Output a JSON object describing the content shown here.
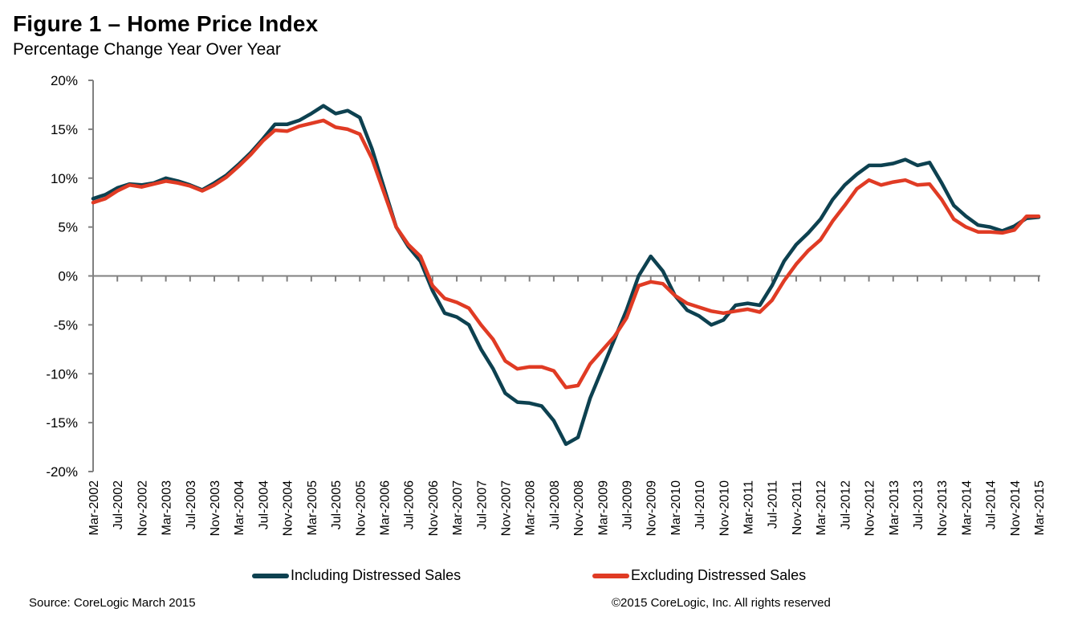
{
  "header": {
    "title": "Figure 1 – Home Price Index",
    "subtitle": "Percentage Change Year Over Year"
  },
  "footer": {
    "source": "Source: CoreLogic  March 2015",
    "copyright": "©2015 CoreLogic, Inc. All rights reserved"
  },
  "chart_data": {
    "type": "line",
    "title": "Figure 1 – Home Price Index",
    "subtitle": "Percentage Change Year Over Year",
    "xlabel": "",
    "ylabel": "",
    "ylim": [
      -20,
      20
    ],
    "y_ticks": [
      20,
      15,
      10,
      5,
      0,
      -5,
      -10,
      -15,
      -20
    ],
    "y_tick_labels": [
      "20%",
      "15%",
      "10%",
      "5%",
      "0%",
      "-5%",
      "-10%",
      "-15%",
      "-20%"
    ],
    "x_start": "Mar-2002",
    "x_step_months": 2,
    "x_tick_labels": [
      "Mar-2002",
      "Jul-2002",
      "Nov-2002",
      "Mar-2003",
      "Jul-2003",
      "Nov-2003",
      "Mar-2004",
      "Jul-2004",
      "Nov-2004",
      "Mar-2005",
      "Jul-2005",
      "Nov-2005",
      "Mar-2006",
      "Jul-2006",
      "Nov-2006",
      "Mar-2007",
      "Jul-2007",
      "Nov-2007",
      "Mar-2008",
      "Jul-2008",
      "Nov-2008",
      "Mar-2009",
      "Jul-2009",
      "Nov-2009",
      "Mar-2010",
      "Jul-2010",
      "Nov-2010",
      "Mar-2011",
      "Jul-2011",
      "Nov-2011",
      "Mar-2012",
      "Jul-2012",
      "Nov-2012",
      "Mar-2013",
      "Jul-2013",
      "Nov-2013",
      "Mar-2014",
      "Jul-2014",
      "Nov-2014",
      "Mar-2015"
    ],
    "legend_position": "bottom",
    "grid": false,
    "series": [
      {
        "name": "Including Distressed Sales",
        "color": "#0d4150",
        "values": [
          7.9,
          8.3,
          9.0,
          9.4,
          9.3,
          9.5,
          10.0,
          9.7,
          9.3,
          8.8,
          9.5,
          10.3,
          11.4,
          12.6,
          14.0,
          15.5,
          15.5,
          15.9,
          16.6,
          17.4,
          16.6,
          16.9,
          16.2,
          13.0,
          9.0,
          5.0,
          3.0,
          1.5,
          -1.5,
          -3.8,
          -4.2,
          -5.0,
          -7.5,
          -9.5,
          -12.0,
          -12.9,
          -13.0,
          -13.3,
          -14.8,
          -17.2,
          -16.5,
          -12.5,
          -9.5,
          -6.5,
          -3.5,
          0.0,
          2.0,
          0.5,
          -2.0,
          -3.5,
          -4.1,
          -5.0,
          -4.5,
          -3.0,
          -2.8,
          -3.0,
          -1.0,
          1.5,
          3.2,
          4.4,
          5.8,
          7.8,
          9.3,
          10.4,
          11.3,
          11.3,
          11.5,
          11.9,
          11.3,
          11.6,
          9.5,
          7.2,
          6.1,
          5.2,
          5.0,
          4.6,
          5.1,
          5.9,
          6.0
        ],
        "values_note": "sampled every 2 months from Mar-2002 to Mar-2015"
      },
      {
        "name": "Excluding Distressed Sales",
        "color": "#e03b24",
        "values": [
          7.5,
          7.9,
          8.7,
          9.3,
          9.1,
          9.4,
          9.7,
          9.5,
          9.2,
          8.7,
          9.3,
          10.1,
          11.2,
          12.4,
          13.8,
          14.9,
          14.8,
          15.3,
          15.6,
          15.9,
          15.2,
          15.0,
          14.5,
          12.0,
          8.5,
          5.0,
          3.2,
          2.0,
          -1.0,
          -2.3,
          -2.7,
          -3.3,
          -5.0,
          -6.5,
          -8.7,
          -9.5,
          -9.3,
          -9.3,
          -9.7,
          -11.4,
          -11.2,
          -9.0,
          -7.6,
          -6.2,
          -4.3,
          -1.0,
          -0.6,
          -0.8,
          -2.0,
          -2.8,
          -3.2,
          -3.6,
          -3.8,
          -3.6,
          -3.4,
          -3.7,
          -2.5,
          -0.5,
          1.2,
          2.6,
          3.7,
          5.6,
          7.2,
          8.9,
          9.8,
          9.3,
          9.6,
          9.8,
          9.3,
          9.4,
          7.8,
          5.8,
          5.0,
          4.5,
          4.5,
          4.4,
          4.7,
          6.1,
          6.1
        ],
        "values_note": "sampled every 2 months from Mar-2002 to Mar-2015"
      }
    ]
  }
}
